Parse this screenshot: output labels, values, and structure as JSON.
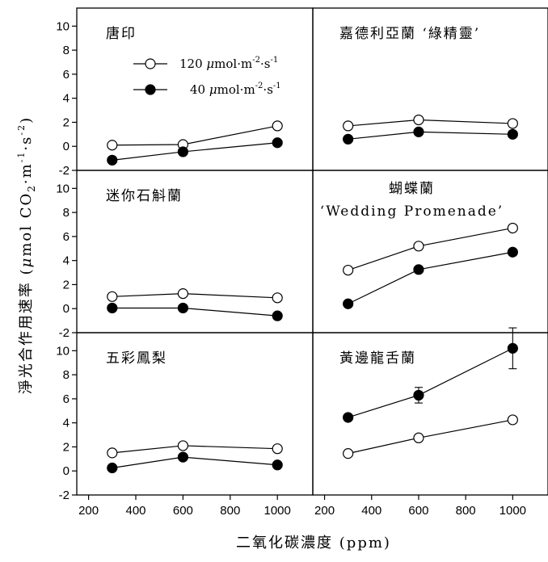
{
  "figure": {
    "xlabel": "二氧化碳濃度 (ppm)",
    "ylabel": "淨光合作用速率 (μmol CO2·m-1·s-2)",
    "ylabel_parts": {
      "text": "淨光合作用速率 ",
      "paren_open": "(",
      "mu": "μ",
      "mol": "mol CO",
      "sub2": "2",
      "dot_m": "·m",
      "sup_m": "-1",
      "dot_s": "·s",
      "sup_s": "-2",
      "paren_close": ")"
    }
  },
  "legend": [
    {
      "label": "120 μmol·m-2·s-1",
      "value": "120",
      "mu": "μ",
      "unit": "mol·m",
      "exp_m": "-2",
      "s": "·s",
      "exp_s": "-1",
      "marker": "open"
    },
    {
      "label": "40 μmol·m-2·s-1",
      "value": "40",
      "mu": "μ",
      "unit": "mol·m",
      "exp_m": "-2",
      "s": "·s",
      "exp_s": "-1",
      "marker": "filled"
    }
  ],
  "chart_data": [
    {
      "type": "line",
      "title": "唐印",
      "x": [
        300,
        600,
        1000
      ],
      "xlim": [
        150,
        1150
      ],
      "ylim": [
        -2,
        11.5
      ],
      "series": [
        {
          "name": "120 μmol·m-2·s-1",
          "values": [
            0.1,
            0.15,
            1.7
          ]
        },
        {
          "name": "40 μmol·m-2·s-1",
          "values": [
            -1.15,
            -0.45,
            0.3
          ]
        }
      ]
    },
    {
      "type": "line",
      "title": "嘉德利亞蘭 ‘綠精靈’",
      "x": [
        300,
        600,
        1000
      ],
      "xlim": [
        150,
        1150
      ],
      "ylim": [
        -2,
        11.5
      ],
      "series": [
        {
          "name": "120 μmol·m-2·s-1",
          "values": [
            1.7,
            2.2,
            1.9
          ]
        },
        {
          "name": "40 μmol·m-2·s-1",
          "values": [
            0.6,
            1.2,
            1.0
          ]
        }
      ]
    },
    {
      "type": "line",
      "title": "迷你石斛蘭",
      "x": [
        300,
        600,
        1000
      ],
      "xlim": [
        150,
        1150
      ],
      "ylim": [
        -2,
        11.5
      ],
      "series": [
        {
          "name": "120 μmol·m-2·s-1",
          "values": [
            1.0,
            1.25,
            0.9
          ]
        },
        {
          "name": "40 μmol·m-2·s-1",
          "values": [
            0.05,
            0.05,
            -0.6
          ]
        }
      ]
    },
    {
      "type": "line",
      "title": "蝴蝶蘭",
      "subtitle": "‘Wedding Promenade’",
      "x": [
        300,
        600,
        1000
      ],
      "xlim": [
        150,
        1150
      ],
      "ylim": [
        -2,
        11.5
      ],
      "series": [
        {
          "name": "120 μmol·m-2·s-1",
          "values": [
            3.2,
            5.2,
            6.7
          ]
        },
        {
          "name": "40 μmol·m-2·s-1",
          "values": [
            0.4,
            3.25,
            4.7
          ]
        }
      ]
    },
    {
      "type": "line",
      "title": "五彩鳳梨",
      "x": [
        300,
        600,
        1000
      ],
      "xlim": [
        150,
        1150
      ],
      "ylim": [
        -2,
        11.5
      ],
      "series": [
        {
          "name": "120 μmol·m-2·s-1",
          "values": [
            1.5,
            2.1,
            1.85
          ]
        },
        {
          "name": "40 μmol·m-2·s-1",
          "values": [
            0.25,
            1.15,
            0.5
          ]
        }
      ]
    },
    {
      "type": "line",
      "title": "黃邊龍舌蘭",
      "x": [
        300,
        600,
        1000
      ],
      "xlim": [
        150,
        1150
      ],
      "ylim": [
        -2,
        11.5
      ],
      "series": [
        {
          "name": "120 μmol·m-2·s-1",
          "values": [
            1.45,
            2.75,
            4.25
          ]
        },
        {
          "name": "40 μmol·m-2·s-1",
          "values": [
            4.45,
            6.3,
            10.2
          ],
          "error": [
            0,
            0.65,
            1.7
          ]
        }
      ]
    }
  ],
  "axes": {
    "y_ticks": [
      10,
      8,
      6,
      4,
      2,
      0,
      -2
    ],
    "x_ticks": [
      200,
      400,
      600,
      800,
      1000
    ]
  }
}
